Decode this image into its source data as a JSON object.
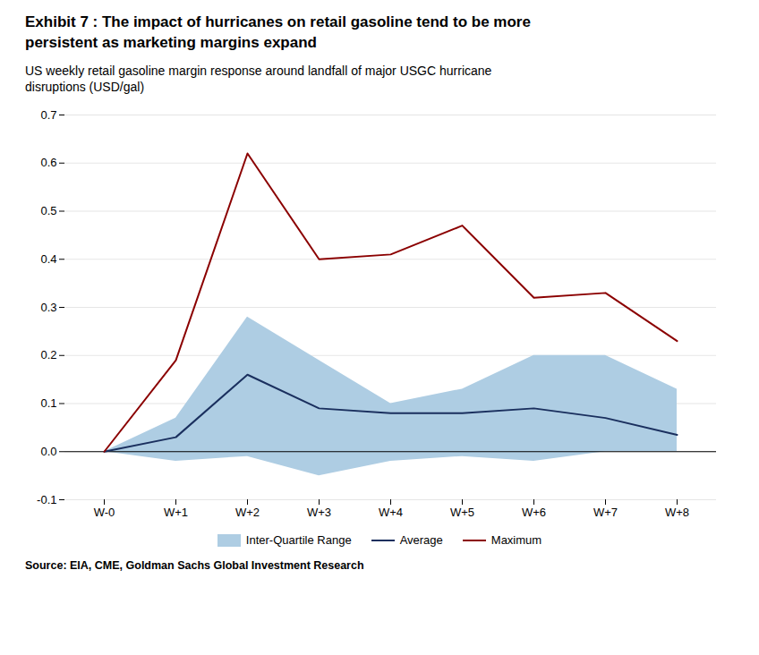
{
  "chart_data": {
    "type": "line",
    "title": "Exhibit 7 : The impact of hurricanes on retail gasoline tend to be more\npersistent as marketing margins expand",
    "subtitle": "US weekly retail gasoline margin response around landfall of major USGC hurricane\ndisruptions (USD/gal)",
    "source": "Source: EIA, CME, Goldman Sachs Global Investment Research",
    "categories": [
      "W-0",
      "W+1",
      "W+2",
      "W+3",
      "W+4",
      "W+5",
      "W+6",
      "W+7",
      "W+8"
    ],
    "series": [
      {
        "name": "Inter-Quartile Range",
        "type": "area",
        "color": "#aecde3",
        "lower": [
          0.0,
          -0.02,
          -0.01,
          -0.05,
          -0.02,
          -0.01,
          -0.02,
          0.0,
          0.0
        ],
        "upper": [
          0.0,
          0.07,
          0.28,
          0.19,
          0.1,
          0.13,
          0.2,
          0.2,
          0.13
        ]
      },
      {
        "name": "Average",
        "type": "line",
        "color": "#1a2f5e",
        "values": [
          0.0,
          0.03,
          0.16,
          0.09,
          0.08,
          0.08,
          0.09,
          0.07,
          0.035
        ]
      },
      {
        "name": "Maximum",
        "type": "line",
        "color": "#8b0000",
        "values": [
          0.0,
          0.19,
          0.62,
          0.4,
          0.41,
          0.47,
          0.32,
          0.33,
          0.23
        ]
      }
    ],
    "ylim": [
      -0.1,
      0.7
    ],
    "yticks": [
      -0.1,
      {
        "value": 0.0,
        "label": "0.0"
      },
      0.1,
      0.2,
      0.3,
      0.4,
      0.5,
      0.6,
      0.7
    ],
    "grid": true,
    "legend": "bottom"
  }
}
